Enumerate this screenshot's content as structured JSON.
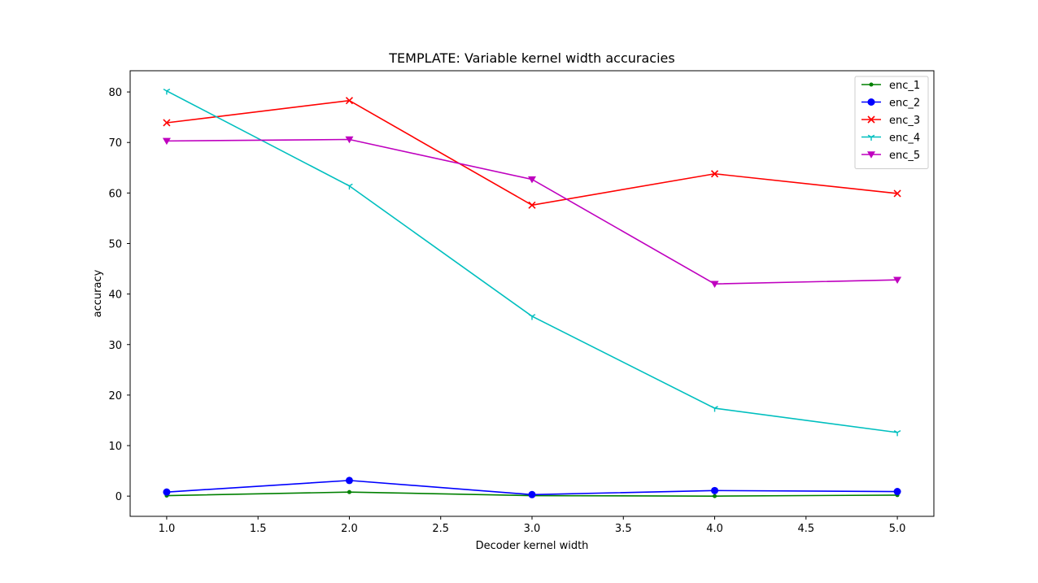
{
  "chart_data": {
    "type": "line",
    "title": "TEMPLATE: Variable kernel width accuracies",
    "xlabel": "Decoder kernel width",
    "ylabel": "accuracy",
    "x": [
      1,
      2,
      3,
      4,
      5
    ],
    "xlim": [
      0.8,
      5.2
    ],
    "ylim": [
      -4,
      84.2
    ],
    "xticks": [
      1.0,
      1.5,
      2.0,
      2.5,
      3.0,
      3.5,
      4.0,
      4.5,
      5.0
    ],
    "xtick_labels": [
      "1.0",
      "1.5",
      "2.0",
      "2.5",
      "3.0",
      "3.5",
      "4.0",
      "4.5",
      "5.0"
    ],
    "yticks": [
      0,
      10,
      20,
      30,
      40,
      50,
      60,
      70,
      80
    ],
    "ytick_labels": [
      "0",
      "10",
      "20",
      "30",
      "40",
      "50",
      "60",
      "70",
      "80"
    ],
    "grid": false,
    "legend_position": "top-right",
    "series": [
      {
        "name": "enc_1",
        "color": "#008000",
        "marker": "point",
        "values": [
          0.1,
          0.8,
          0.1,
          0.0,
          0.2
        ]
      },
      {
        "name": "enc_2",
        "color": "#0000ff",
        "marker": "circle",
        "values": [
          0.8,
          3.1,
          0.3,
          1.1,
          0.9
        ]
      },
      {
        "name": "enc_3",
        "color": "#ff0000",
        "marker": "x",
        "values": [
          73.9,
          78.3,
          57.6,
          63.8,
          59.9
        ]
      },
      {
        "name": "enc_4",
        "color": "#00bfbf",
        "marker": "tri-down",
        "values": [
          80.2,
          61.4,
          35.6,
          17.4,
          12.6
        ]
      },
      {
        "name": "enc_5",
        "color": "#bf00bf",
        "marker": "triangle-down",
        "values": [
          70.3,
          70.6,
          62.7,
          42.0,
          42.8
        ]
      }
    ]
  }
}
